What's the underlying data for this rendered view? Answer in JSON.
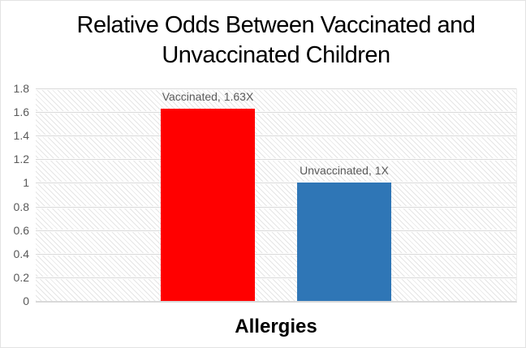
{
  "chart_data": {
    "type": "bar",
    "title": "Relative Odds Between Vaccinated and Unvaccinated Children",
    "categories": [
      "Allergies"
    ],
    "series": [
      {
        "name": "Vaccinated",
        "value": 1.63,
        "color": "#ff0000",
        "data_label": "Vaccinated, 1.63X"
      },
      {
        "name": "Unvaccinated",
        "value": 1.0,
        "color": "#2f76b6",
        "data_label": "Unvaccinated, 1X"
      }
    ],
    "xlabel": "Allergies",
    "ylabel": "",
    "ylim": [
      0,
      1.8
    ],
    "ytick_values": [
      0,
      0.2,
      0.4,
      0.6,
      0.8,
      1,
      1.2,
      1.4,
      1.6,
      1.8
    ],
    "ytick_labels": [
      "0",
      "0.2",
      "0.4",
      "0.6",
      "0.8",
      "1",
      "1.2",
      "1.4",
      "1.6",
      "1.8"
    ],
    "grid": true,
    "legend": "none",
    "plot_area_fill": "light-diagonal-hatch",
    "colors": {
      "title_text": "#000000",
      "tick_text": "#595959",
      "data_label_text": "#595959",
      "gridline": "#d9d9d9",
      "axis_line": "#d9d9d9",
      "hatch_line": "rgba(0,0,0,0.10)",
      "background": "#ffffff"
    }
  }
}
